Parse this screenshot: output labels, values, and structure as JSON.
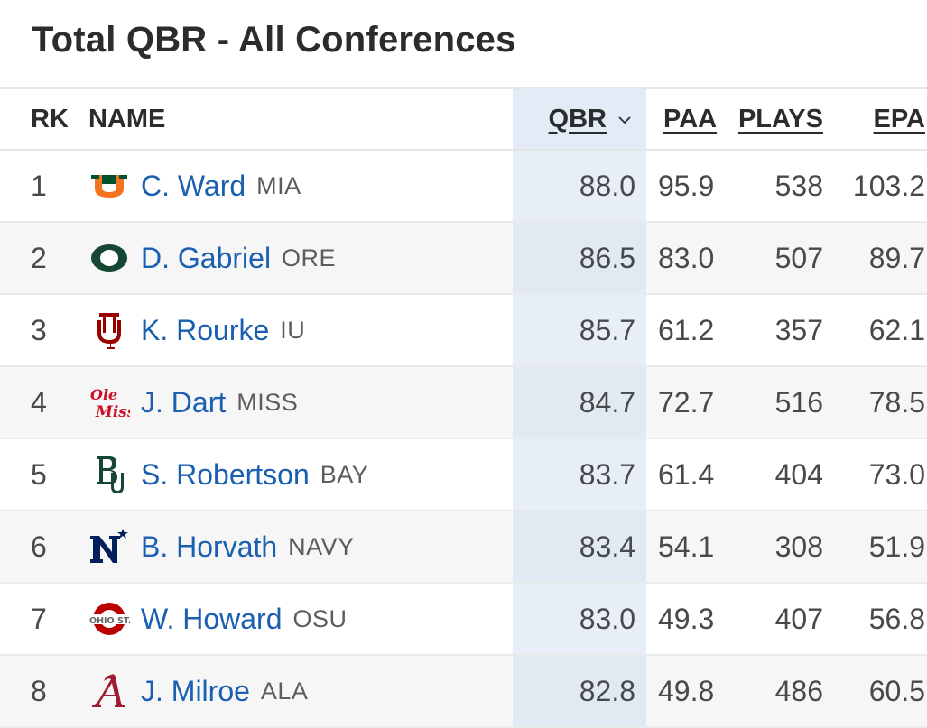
{
  "title": "Total QBR - All Conferences",
  "columns": {
    "rk": "RK",
    "name": "NAME",
    "qbr": "QBR",
    "paa": "PAA",
    "plays": "PLAYS",
    "epa": "EPA"
  },
  "sort_indicator": "chevron-down-icon",
  "colors": {
    "link": "#1a5fb0",
    "sorted_column": "#e7eef7"
  },
  "rows": [
    {
      "rk": "1",
      "name": "C. Ward",
      "team": "MIA",
      "logo": "miami-u-logo-icon",
      "qbr": "88.0",
      "paa": "95.9",
      "plays": "538",
      "epa": "103.2"
    },
    {
      "rk": "2",
      "name": "D. Gabriel",
      "team": "ORE",
      "logo": "oregon-o-logo-icon",
      "qbr": "86.5",
      "paa": "83.0",
      "plays": "507",
      "epa": "89.7"
    },
    {
      "rk": "3",
      "name": "K. Rourke",
      "team": "IU",
      "logo": "indiana-iu-logo-icon",
      "qbr": "85.7",
      "paa": "61.2",
      "plays": "357",
      "epa": "62.1"
    },
    {
      "rk": "4",
      "name": "J. Dart",
      "team": "MISS",
      "logo": "ole-miss-logo-icon",
      "qbr": "84.7",
      "paa": "72.7",
      "plays": "516",
      "epa": "78.5"
    },
    {
      "rk": "5",
      "name": "S. Robertson",
      "team": "BAY",
      "logo": "baylor-bu-logo-icon",
      "qbr": "83.7",
      "paa": "61.4",
      "plays": "404",
      "epa": "73.0"
    },
    {
      "rk": "6",
      "name": "B. Horvath",
      "team": "NAVY",
      "logo": "navy-n-star-logo-icon",
      "qbr": "83.4",
      "paa": "54.1",
      "plays": "308",
      "epa": "51.9"
    },
    {
      "rk": "7",
      "name": "W. Howard",
      "team": "OSU",
      "logo": "ohio-state-logo-icon",
      "qbr": "83.0",
      "paa": "49.3",
      "plays": "407",
      "epa": "56.8"
    },
    {
      "rk": "8",
      "name": "J. Milroe",
      "team": "ALA",
      "logo": "alabama-a-logo-icon",
      "qbr": "82.8",
      "paa": "49.8",
      "plays": "486",
      "epa": "60.5"
    }
  ]
}
